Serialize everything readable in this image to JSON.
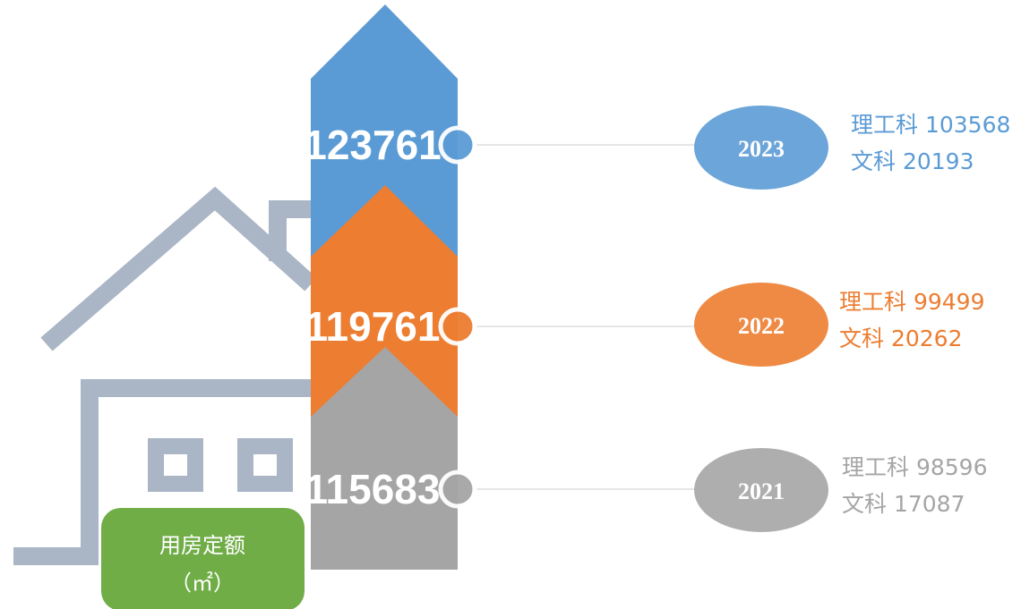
{
  "badge": {
    "title": "用房定额",
    "unit": "（㎡）"
  },
  "items": [
    {
      "year": "2023",
      "total": "123761",
      "science": "理工科 103568",
      "arts": "文科 20193",
      "color": "#5b9bd5"
    },
    {
      "year": "2022",
      "total": "119761",
      "science": "理工科 99499",
      "arts": "文科 20262",
      "color": "#ed7d31"
    },
    {
      "year": "2021",
      "total": "115683",
      "science": "理工科 98596",
      "arts": "文科 17087",
      "color": "#a5a5a5"
    }
  ]
}
